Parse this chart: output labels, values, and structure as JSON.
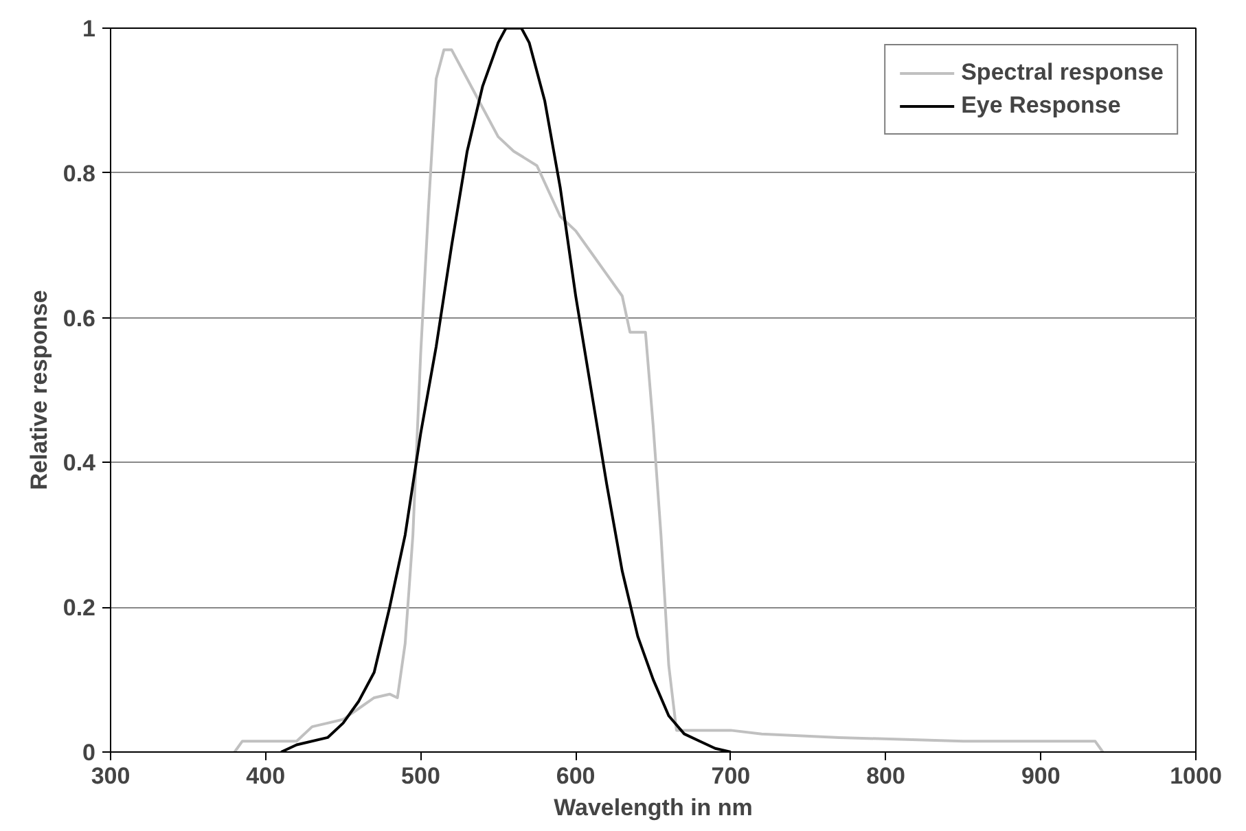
{
  "chart_data": {
    "type": "line",
    "xlabel": "Wavelength in nm",
    "ylabel": "Relative response",
    "xlim": [
      300,
      1000
    ],
    "ylim": [
      0,
      1
    ],
    "xticks": [
      300,
      400,
      500,
      600,
      700,
      800,
      900,
      1000
    ],
    "yticks": [
      0,
      0.2,
      0.4,
      0.6,
      0.8,
      1
    ],
    "grid": "y",
    "legend": "top right",
    "marker": "none",
    "line_style": "solid",
    "series": [
      {
        "name": "Spectral response",
        "color": "#c0c0c0",
        "x": [
          380,
          385,
          420,
          430,
          440,
          450,
          460,
          470,
          480,
          485,
          490,
          495,
          500,
          505,
          510,
          515,
          520,
          530,
          540,
          550,
          560,
          575,
          590,
          600,
          610,
          620,
          630,
          635,
          645,
          650,
          655,
          660,
          665,
          700,
          720,
          770,
          850,
          920,
          935,
          940
        ],
        "values": [
          0,
          0.015,
          0.015,
          0.035,
          0.04,
          0.045,
          0.06,
          0.075,
          0.08,
          0.075,
          0.15,
          0.3,
          0.55,
          0.75,
          0.93,
          0.97,
          0.97,
          0.93,
          0.89,
          0.85,
          0.83,
          0.81,
          0.74,
          0.72,
          0.69,
          0.66,
          0.63,
          0.58,
          0.58,
          0.45,
          0.3,
          0.12,
          0.03,
          0.03,
          0.025,
          0.02,
          0.015,
          0.015,
          0.015,
          0
        ]
      },
      {
        "name": "Eye Response",
        "color": "#000000",
        "x": [
          410,
          420,
          440,
          450,
          460,
          470,
          480,
          490,
          500,
          510,
          520,
          530,
          540,
          550,
          555,
          565,
          570,
          580,
          590,
          600,
          610,
          620,
          630,
          640,
          650,
          660,
          670,
          680,
          690,
          700
        ],
        "values": [
          0,
          0.01,
          0.02,
          0.04,
          0.07,
          0.11,
          0.2,
          0.3,
          0.44,
          0.56,
          0.7,
          0.83,
          0.92,
          0.98,
          1.0,
          1.0,
          0.98,
          0.9,
          0.78,
          0.63,
          0.5,
          0.37,
          0.25,
          0.16,
          0.1,
          0.05,
          0.025,
          0.015,
          0.005,
          0
        ]
      }
    ]
  }
}
